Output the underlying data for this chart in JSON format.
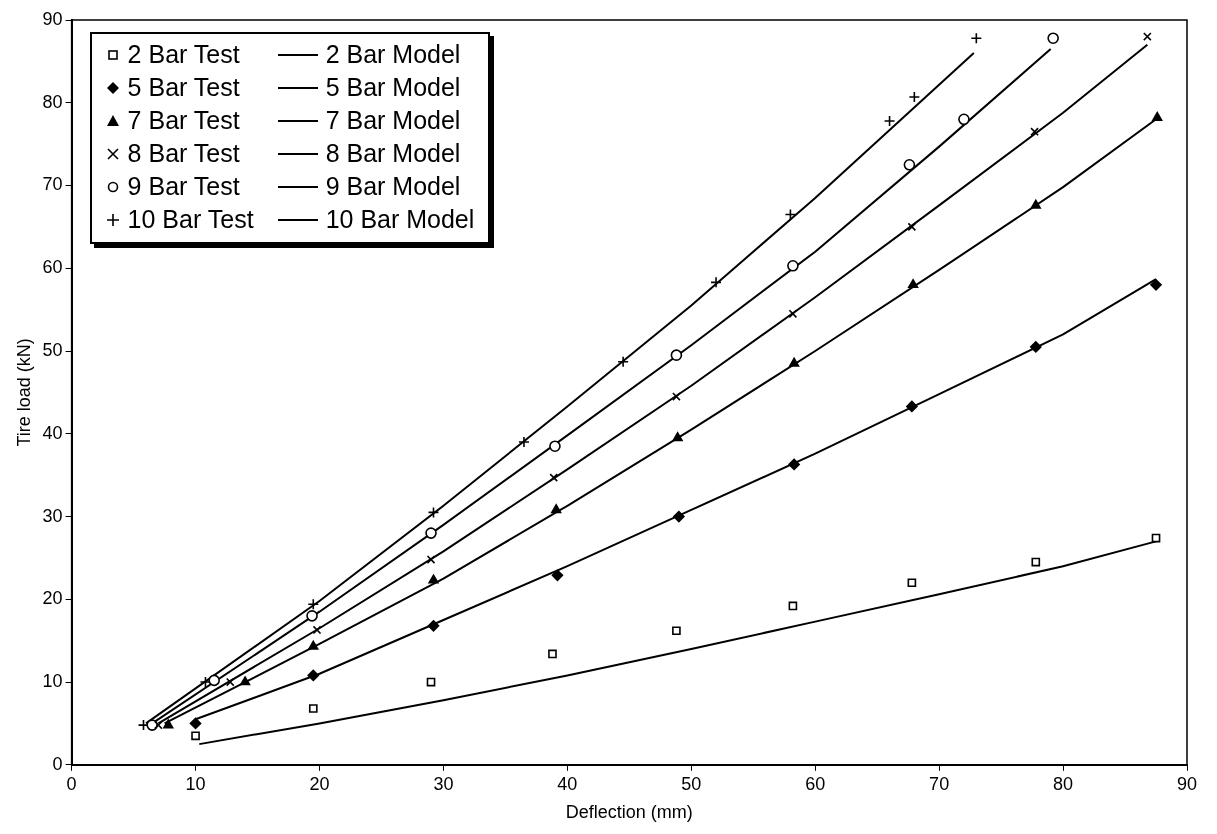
{
  "chart_data": {
    "type": "line",
    "xlabel": "Deflection (mm)",
    "ylabel": "Tire load (kN)",
    "xlim": [
      0,
      90
    ],
    "ylim": [
      0,
      90
    ],
    "xticks": [
      0,
      10,
      20,
      30,
      40,
      50,
      60,
      70,
      80,
      90
    ],
    "yticks": [
      0,
      10,
      20,
      30,
      40,
      50,
      60,
      70,
      80,
      90
    ],
    "grid": false,
    "legend": "top left",
    "series": [
      {
        "name": "2 Bar Test",
        "type": "scatter",
        "marker": "square",
        "color": "#000000",
        "x": [
          10,
          19.5,
          29,
          38.8,
          48.8,
          58.2,
          67.8,
          77.8,
          87.5
        ],
        "values": [
          3.5,
          6.8,
          10,
          13.4,
          16.2,
          19.2,
          22,
          24.5,
          27.4
        ]
      },
      {
        "name": "2 Bar Model",
        "type": "line",
        "marker": "none",
        "color": "#000000",
        "x": [
          10.3,
          20,
          30,
          40,
          50,
          60,
          70,
          80,
          87.5
        ],
        "values": [
          2.5,
          5,
          7.8,
          10.8,
          14,
          17.3,
          20.6,
          24,
          27
        ]
      },
      {
        "name": "5 Bar Test",
        "type": "scatter",
        "marker": "diamond",
        "color": "#000000",
        "x": [
          10,
          19.5,
          29.2,
          39.2,
          49,
          58.3,
          67.8,
          77.8,
          87.5
        ],
        "values": [
          5,
          10.8,
          16.8,
          22.9,
          30,
          36.3,
          43.3,
          50.5,
          58
        ]
      },
      {
        "name": "5 Bar Model",
        "type": "line",
        "marker": "none",
        "color": "#000000",
        "x": [
          10,
          20,
          30,
          40,
          50,
          60,
          70,
          80,
          87.5
        ],
        "values": [
          5.5,
          11,
          17.5,
          24,
          30.8,
          37.6,
          44.8,
          52,
          58.7
        ]
      },
      {
        "name": "7 Bar Test",
        "type": "scatter",
        "marker": "triangle",
        "color": "#000000",
        "x": [
          7.8,
          14,
          19.5,
          29.2,
          39.1,
          48.9,
          58.3,
          67.9,
          77.8,
          87.6
        ],
        "values": [
          4.8,
          10,
          14.3,
          22.3,
          30.8,
          39.5,
          48.5,
          58,
          67.6,
          78.2
        ]
      },
      {
        "name": "7 Bar Model",
        "type": "line",
        "marker": "none",
        "color": "#000000",
        "x": [
          7.5,
          20,
          30,
          40,
          50,
          60,
          70,
          80,
          87.5
        ],
        "values": [
          5,
          14.6,
          22.5,
          31.3,
          40.5,
          50,
          59.8,
          69.8,
          78
        ]
      },
      {
        "name": "8 Bar Test",
        "type": "scatter",
        "marker": "x",
        "color": "#000000",
        "x": [
          7,
          12.8,
          19.8,
          29,
          38.9,
          48.8,
          58.2,
          67.8,
          77.7,
          86.8
        ],
        "values": [
          4.8,
          10,
          16.3,
          24.8,
          34.7,
          44.5,
          54.5,
          65,
          76.5,
          88
        ]
      },
      {
        "name": "8 Bar Model",
        "type": "line",
        "marker": "none",
        "color": "#000000",
        "x": [
          7,
          20,
          30,
          40,
          50,
          60,
          70,
          80,
          86.8
        ],
        "values": [
          5,
          16.5,
          25.8,
          35.7,
          45.8,
          56.5,
          67.6,
          78.8,
          87
        ]
      },
      {
        "name": "9 Bar Test",
        "type": "scatter",
        "marker": "circle",
        "color": "#000000",
        "x": [
          6.5,
          11.5,
          19.4,
          29,
          39,
          48.8,
          58.2,
          67.6,
          72,
          79.2
        ],
        "values": [
          4.8,
          10.2,
          18,
          28,
          38.5,
          49.5,
          60.3,
          72.5,
          78,
          87.8
        ]
      },
      {
        "name": "9 Bar Model",
        "type": "line",
        "marker": "none",
        "color": "#000000",
        "x": [
          6.5,
          20,
          30,
          40,
          50,
          60,
          70,
          79
        ],
        "values": [
          5,
          18.5,
          29,
          39.8,
          50.7,
          62,
          74.7,
          86.5
        ]
      },
      {
        "name": "10 Bar Test",
        "type": "scatter",
        "marker": "cross",
        "color": "#000000",
        "x": [
          5.8,
          10.8,
          19.5,
          29.2,
          36.5,
          44.5,
          52,
          58,
          66,
          68,
          73
        ],
        "values": [
          4.8,
          10,
          19.4,
          30.5,
          39,
          48.7,
          58.3,
          66.5,
          77.8,
          80.7,
          87.8
        ]
      },
      {
        "name": "10 Bar Model",
        "type": "line",
        "marker": "none",
        "color": "#000000",
        "x": [
          6,
          20,
          30,
          40,
          50,
          60,
          72.8
        ],
        "values": [
          5,
          19.8,
          31.3,
          43.3,
          55.5,
          68.5,
          86
        ]
      }
    ]
  }
}
